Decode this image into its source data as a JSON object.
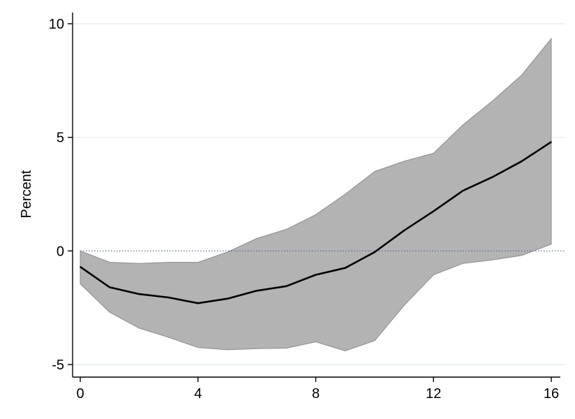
{
  "chart_data": {
    "type": "area",
    "xlabel": "",
    "ylabel": "Percent",
    "xlim": [
      0,
      16
    ],
    "ylim": [
      -5,
      10
    ],
    "x_ticks": [
      0,
      4,
      8,
      12,
      16
    ],
    "x_tick_labels": [
      "0",
      "4",
      "8",
      "12",
      "16"
    ],
    "y_ticks": [
      -5,
      0,
      5,
      10
    ],
    "y_tick_labels": [
      "-5",
      "0",
      "5",
      "10"
    ],
    "grid": "horizontal",
    "reference_line": {
      "y": 0,
      "style": "dotted",
      "color": "#4a5bb0"
    },
    "x": [
      0,
      1,
      2,
      3,
      4,
      5,
      6,
      7,
      8,
      9,
      10,
      11,
      12,
      13,
      14,
      15,
      16
    ],
    "series": [
      {
        "values": [
          -0.7,
          -1.6,
          -1.9,
          -2.05,
          -2.3,
          -2.1,
          -1.75,
          -1.55,
          -1.05,
          -0.75,
          -0.05,
          0.9,
          1.75,
          2.65,
          3.25,
          3.95,
          4.8
        ],
        "color": "#000000"
      }
    ],
    "band": {
      "lower": [
        -1.45,
        -2.7,
        -3.4,
        -3.8,
        -4.25,
        -4.35,
        -4.3,
        -4.28,
        -4.0,
        -4.4,
        -3.95,
        -2.4,
        -1.05,
        -0.55,
        -0.4,
        -0.2,
        0.3
      ],
      "upper": [
        0.0,
        -0.5,
        -0.55,
        -0.5,
        -0.5,
        -0.05,
        0.55,
        0.95,
        1.6,
        2.5,
        3.5,
        3.95,
        4.3,
        5.55,
        6.6,
        7.75,
        9.35
      ],
      "color": "#b3b3b3",
      "edge_color": "#8c8c8c"
    }
  }
}
